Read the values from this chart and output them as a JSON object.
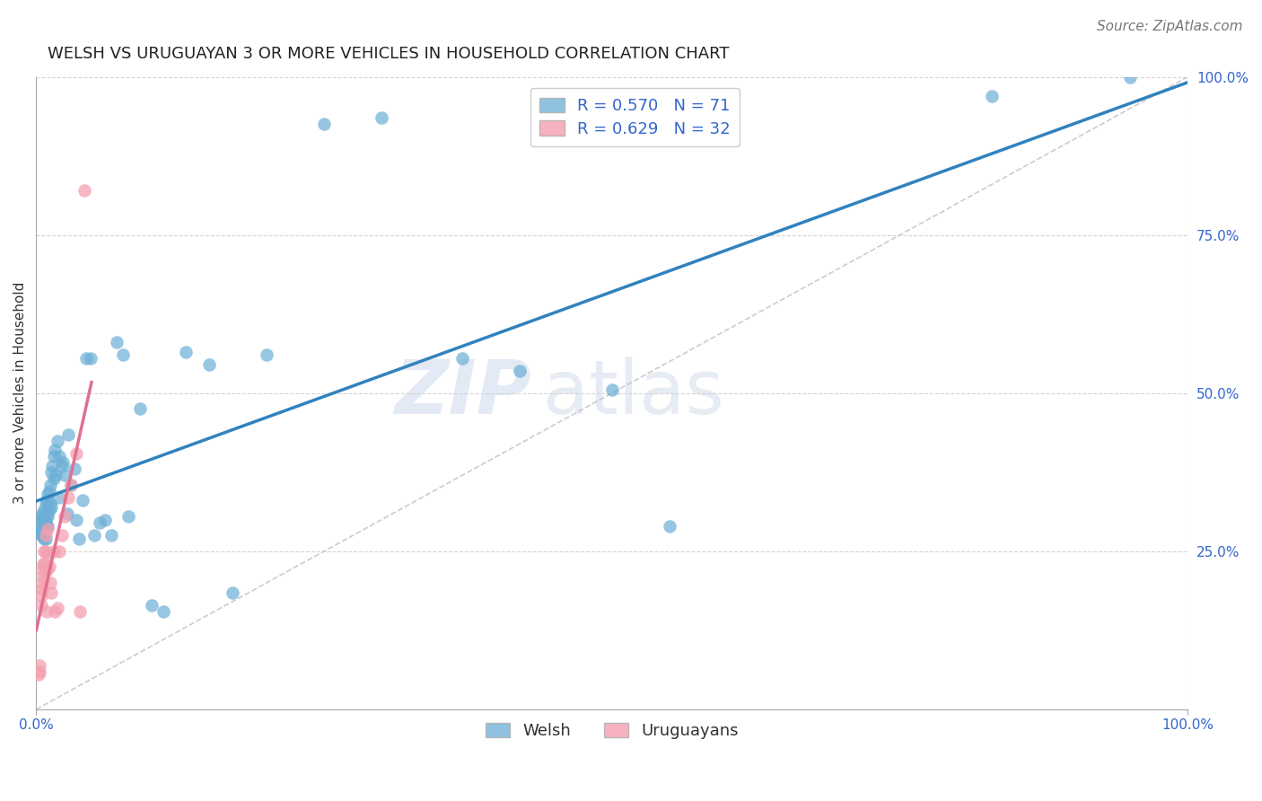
{
  "title": "WELSH VS URUGUAYAN 3 OR MORE VEHICLES IN HOUSEHOLD CORRELATION CHART",
  "source": "Source: ZipAtlas.com",
  "ylabel": "3 or more Vehicles in Household",
  "welsh_R": 0.57,
  "welsh_N": 71,
  "uruguayan_R": 0.629,
  "uruguayan_N": 32,
  "welsh_color": "#6baed6",
  "uruguayan_color": "#f4a0b0",
  "welsh_line_color": "#3182bd",
  "uruguayan_line_color": "#e07090",
  "diagonal_color": "#c0c0c0",
  "background_color": "#ffffff",
  "grid_color": "#d0d0d0",
  "welsh_x": [
    0.003,
    0.003,
    0.004,
    0.004,
    0.005,
    0.005,
    0.005,
    0.006,
    0.006,
    0.006,
    0.007,
    0.007,
    0.007,
    0.007,
    0.008,
    0.008,
    0.008,
    0.009,
    0.009,
    0.009,
    0.01,
    0.01,
    0.01,
    0.011,
    0.011,
    0.012,
    0.012,
    0.013,
    0.013,
    0.014,
    0.015,
    0.015,
    0.016,
    0.017,
    0.018,
    0.019,
    0.02,
    0.022,
    0.023,
    0.025,
    0.027,
    0.028,
    0.03,
    0.033,
    0.035,
    0.037,
    0.04,
    0.043,
    0.047,
    0.05,
    0.055,
    0.06,
    0.065,
    0.07,
    0.075,
    0.08,
    0.09,
    0.1,
    0.11,
    0.13,
    0.15,
    0.17,
    0.2,
    0.25,
    0.3,
    0.37,
    0.42,
    0.5,
    0.55,
    0.83,
    0.95
  ],
  "welsh_y": [
    0.29,
    0.28,
    0.3,
    0.275,
    0.31,
    0.285,
    0.305,
    0.28,
    0.3,
    0.295,
    0.315,
    0.29,
    0.27,
    0.3,
    0.325,
    0.295,
    0.27,
    0.33,
    0.305,
    0.29,
    0.34,
    0.305,
    0.29,
    0.345,
    0.315,
    0.355,
    0.325,
    0.32,
    0.375,
    0.385,
    0.4,
    0.365,
    0.41,
    0.37,
    0.425,
    0.335,
    0.4,
    0.385,
    0.39,
    0.37,
    0.31,
    0.435,
    0.355,
    0.38,
    0.3,
    0.27,
    0.33,
    0.555,
    0.555,
    0.275,
    0.295,
    0.3,
    0.275,
    0.58,
    0.56,
    0.305,
    0.475,
    0.165,
    0.155,
    0.565,
    0.545,
    0.185,
    0.56,
    0.925,
    0.935,
    0.555,
    0.535,
    0.505,
    0.29,
    0.97,
    1.0
  ],
  "uruguayan_x": [
    0.002,
    0.003,
    0.003,
    0.004,
    0.004,
    0.005,
    0.005,
    0.005,
    0.006,
    0.006,
    0.007,
    0.007,
    0.008,
    0.008,
    0.009,
    0.009,
    0.01,
    0.01,
    0.011,
    0.012,
    0.013,
    0.015,
    0.016,
    0.018,
    0.02,
    0.022,
    0.025,
    0.028,
    0.03,
    0.035,
    0.038,
    0.042
  ],
  "uruguayan_y": [
    0.055,
    0.07,
    0.06,
    0.18,
    0.165,
    0.2,
    0.22,
    0.19,
    0.23,
    0.21,
    0.25,
    0.23,
    0.275,
    0.25,
    0.155,
    0.22,
    0.285,
    0.245,
    0.225,
    0.2,
    0.185,
    0.25,
    0.155,
    0.16,
    0.25,
    0.275,
    0.305,
    0.335,
    0.355,
    0.405,
    0.155,
    0.82
  ],
  "xlim": [
    0.0,
    1.0
  ],
  "ylim": [
    0.0,
    1.0
  ],
  "legend_labels": [
    "Welsh",
    "Uruguayans"
  ],
  "watermark_zip": "ZIP",
  "watermark_atlas": "atlas",
  "title_fontsize": 13,
  "label_fontsize": 11,
  "tick_fontsize": 11,
  "legend_fontsize": 13,
  "source_fontsize": 11
}
